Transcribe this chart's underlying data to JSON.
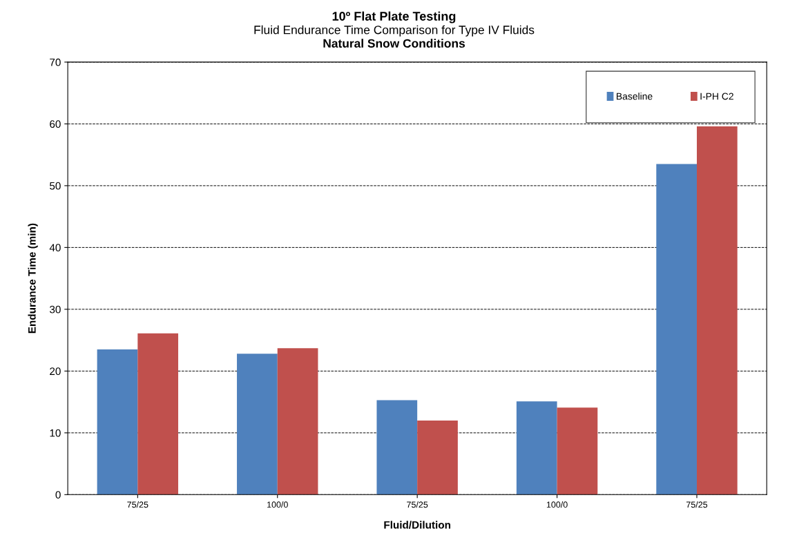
{
  "chart_data": {
    "type": "bar",
    "title": "10º Flat Plate Testing",
    "subtitle": "Fluid Endurance Time Comparison for Type IV Fluids",
    "annotations": [
      "Natural Snow Conditions"
    ],
    "xlabel": "Fluid/Dilution",
    "ylabel": "Endurance Time (min)",
    "categories": [
      "75/25",
      "100/0",
      "75/25",
      "100/0",
      "75/25"
    ],
    "series": [
      {
        "name": "Baseline",
        "color": "#4f81bd",
        "values": [
          23.5,
          22.8,
          15.3,
          15.1,
          53.5
        ]
      },
      {
        "name": "I-PH C2",
        "color": "#c0504d",
        "values": [
          26.1,
          23.7,
          12.0,
          14.1,
          59.6
        ]
      }
    ],
    "ylim": [
      0,
      70
    ],
    "yticks": [
      0,
      10,
      20,
      30,
      40,
      50,
      60,
      70
    ],
    "grid": "y",
    "legend": "top right"
  }
}
